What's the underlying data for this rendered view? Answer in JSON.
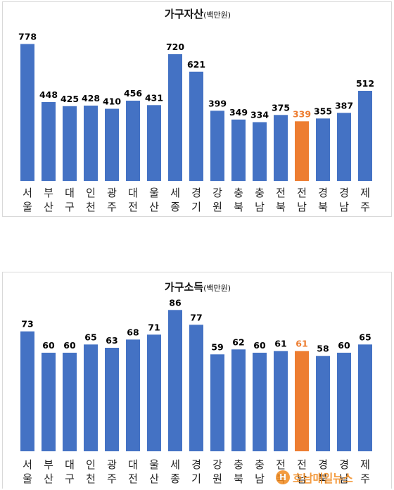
{
  "colors": {
    "bar": "#4472c4",
    "highlight": "#ed7d31",
    "text": "#000000"
  },
  "chart_data": [
    {
      "type": "bar",
      "title": "가구자산",
      "title_unit": "(백만원)",
      "categories": [
        "서울",
        "부산",
        "대구",
        "인천",
        "광주",
        "대전",
        "울산",
        "세종",
        "경기",
        "강원",
        "충북",
        "충남",
        "전북",
        "전남",
        "경북",
        "경남",
        "제주"
      ],
      "values": [
        778,
        448,
        425,
        428,
        410,
        456,
        431,
        720,
        621,
        399,
        349,
        334,
        375,
        339,
        355,
        387,
        512
      ],
      "highlight_index": 13,
      "ylim": [
        0,
        800
      ],
      "grid": false,
      "legend": "none"
    },
    {
      "type": "bar",
      "title": "가구소득",
      "title_unit": "(백만원)",
      "categories": [
        "서울",
        "부산",
        "대구",
        "인천",
        "광주",
        "대전",
        "울산",
        "세종",
        "경기",
        "강원",
        "충북",
        "충남",
        "전북",
        "전남",
        "경북",
        "경남",
        "제주"
      ],
      "values": [
        73,
        60,
        60,
        65,
        63,
        68,
        71,
        86,
        77,
        59,
        62,
        60,
        61,
        61,
        58,
        60,
        65
      ],
      "highlight_index": 13,
      "ylim": [
        0,
        90
      ],
      "grid": false,
      "legend": "none"
    }
  ],
  "watermark": {
    "logo_text": "H",
    "text": "호남매일뉴스"
  }
}
